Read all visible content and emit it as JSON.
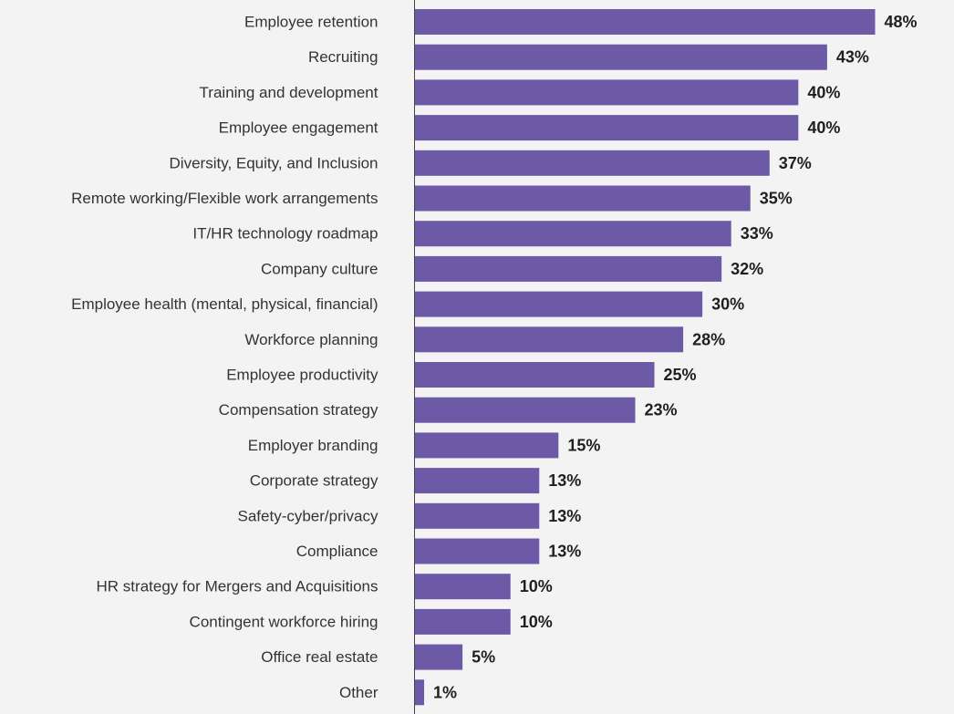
{
  "chart_data": {
    "type": "bar",
    "orientation": "horizontal",
    "categories": [
      "Employee retention",
      "Recruiting",
      "Training and development",
      "Employee engagement",
      "Diversity, Equity, and Inclusion",
      "Remote working/Flexible work arrangements",
      "IT/HR technology roadmap",
      "Company culture",
      "Employee health (mental, physical, financial)",
      "Workforce planning",
      "Employee productivity",
      "Compensation strategy",
      "Employer branding",
      "Corporate strategy",
      "Safety-cyber/privacy",
      "Compliance",
      "HR strategy for Mergers and Acquisitions",
      "Contingent workforce hiring",
      "Office real estate",
      "Other"
    ],
    "values": [
      48,
      43,
      40,
      40,
      37,
      35,
      33,
      32,
      30,
      28,
      25,
      23,
      15,
      13,
      13,
      13,
      10,
      10,
      5,
      1
    ],
    "value_labels": [
      "48%",
      "43%",
      "40%",
      "40%",
      "37%",
      "35%",
      "33%",
      "32%",
      "30%",
      "28%",
      "25%",
      "23%",
      "15%",
      "13%",
      "13%",
      "13%",
      "10%",
      "10%",
      "5%",
      "1%"
    ],
    "xlim": [
      0,
      48
    ],
    "grid": false,
    "legend": "none",
    "colors": {
      "bar": "#6d5aa6",
      "axis": "#444444",
      "background": "#f3f3f4"
    }
  }
}
